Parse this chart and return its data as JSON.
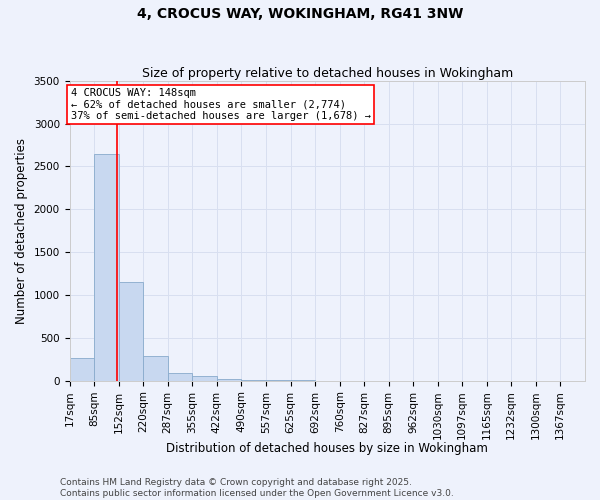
{
  "title": "4, CROCUS WAY, WOKINGHAM, RG41 3NW",
  "subtitle": "Size of property relative to detached houses in Wokingham",
  "xlabel": "Distribution of detached houses by size in Wokingham",
  "ylabel": "Number of detached properties",
  "bar_color": "#c8d8f0",
  "bar_edge_color": "#88aacc",
  "background_color": "#eef2fc",
  "grid_color": "#d8dff0",
  "bins": [
    17,
    85,
    152,
    220,
    287,
    355,
    422,
    490,
    557,
    625,
    692,
    760,
    827,
    895,
    962,
    1030,
    1097,
    1165,
    1232,
    1300,
    1367
  ],
  "counts": [
    270,
    2650,
    1150,
    290,
    90,
    50,
    25,
    10,
    5,
    3,
    2,
    2,
    1,
    1,
    1,
    1,
    0,
    0,
    0,
    0
  ],
  "red_line_x": 148,
  "annotation_text": "4 CROCUS WAY: 148sqm\n← 62% of detached houses are smaller (2,774)\n37% of semi-detached houses are larger (1,678) →",
  "annotation_box_color": "white",
  "annotation_box_edge_color": "red",
  "red_line_color": "red",
  "ylim": [
    0,
    3500
  ],
  "yticks": [
    0,
    500,
    1000,
    1500,
    2000,
    2500,
    3000,
    3500
  ],
  "footnote": "Contains HM Land Registry data © Crown copyright and database right 2025.\nContains public sector information licensed under the Open Government Licence v3.0.",
  "title_fontsize": 10,
  "subtitle_fontsize": 9,
  "axis_label_fontsize": 8.5,
  "tick_fontsize": 7.5,
  "annotation_fontsize": 7.5,
  "footnote_fontsize": 6.5
}
